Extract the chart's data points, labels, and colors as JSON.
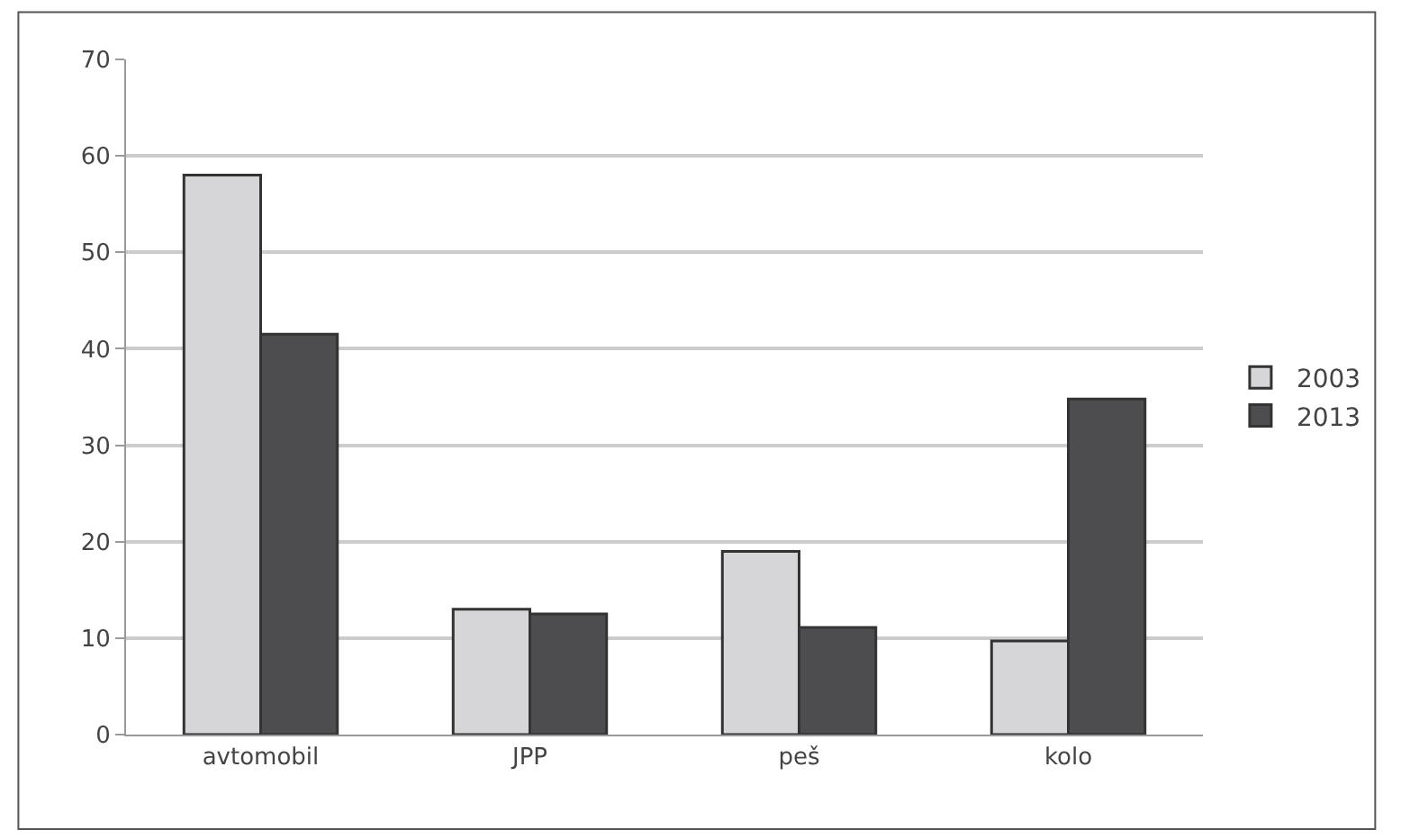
{
  "chart_data": {
    "type": "bar",
    "categories": [
      "avtomobil",
      "JPP",
      "peš",
      "kolo"
    ],
    "series": [
      {
        "name": "2003",
        "color": "#d6d6d8",
        "values": [
          58,
          13,
          19,
          9.7
        ]
      },
      {
        "name": "2013",
        "color": "#4d4d4f",
        "values": [
          41.5,
          12.5,
          11.1,
          34.8
        ]
      }
    ],
    "ylim": [
      0,
      70
    ],
    "yticks": [
      0,
      10,
      20,
      30,
      40,
      50,
      60,
      70
    ],
    "grid": "y",
    "legend": "right"
  }
}
